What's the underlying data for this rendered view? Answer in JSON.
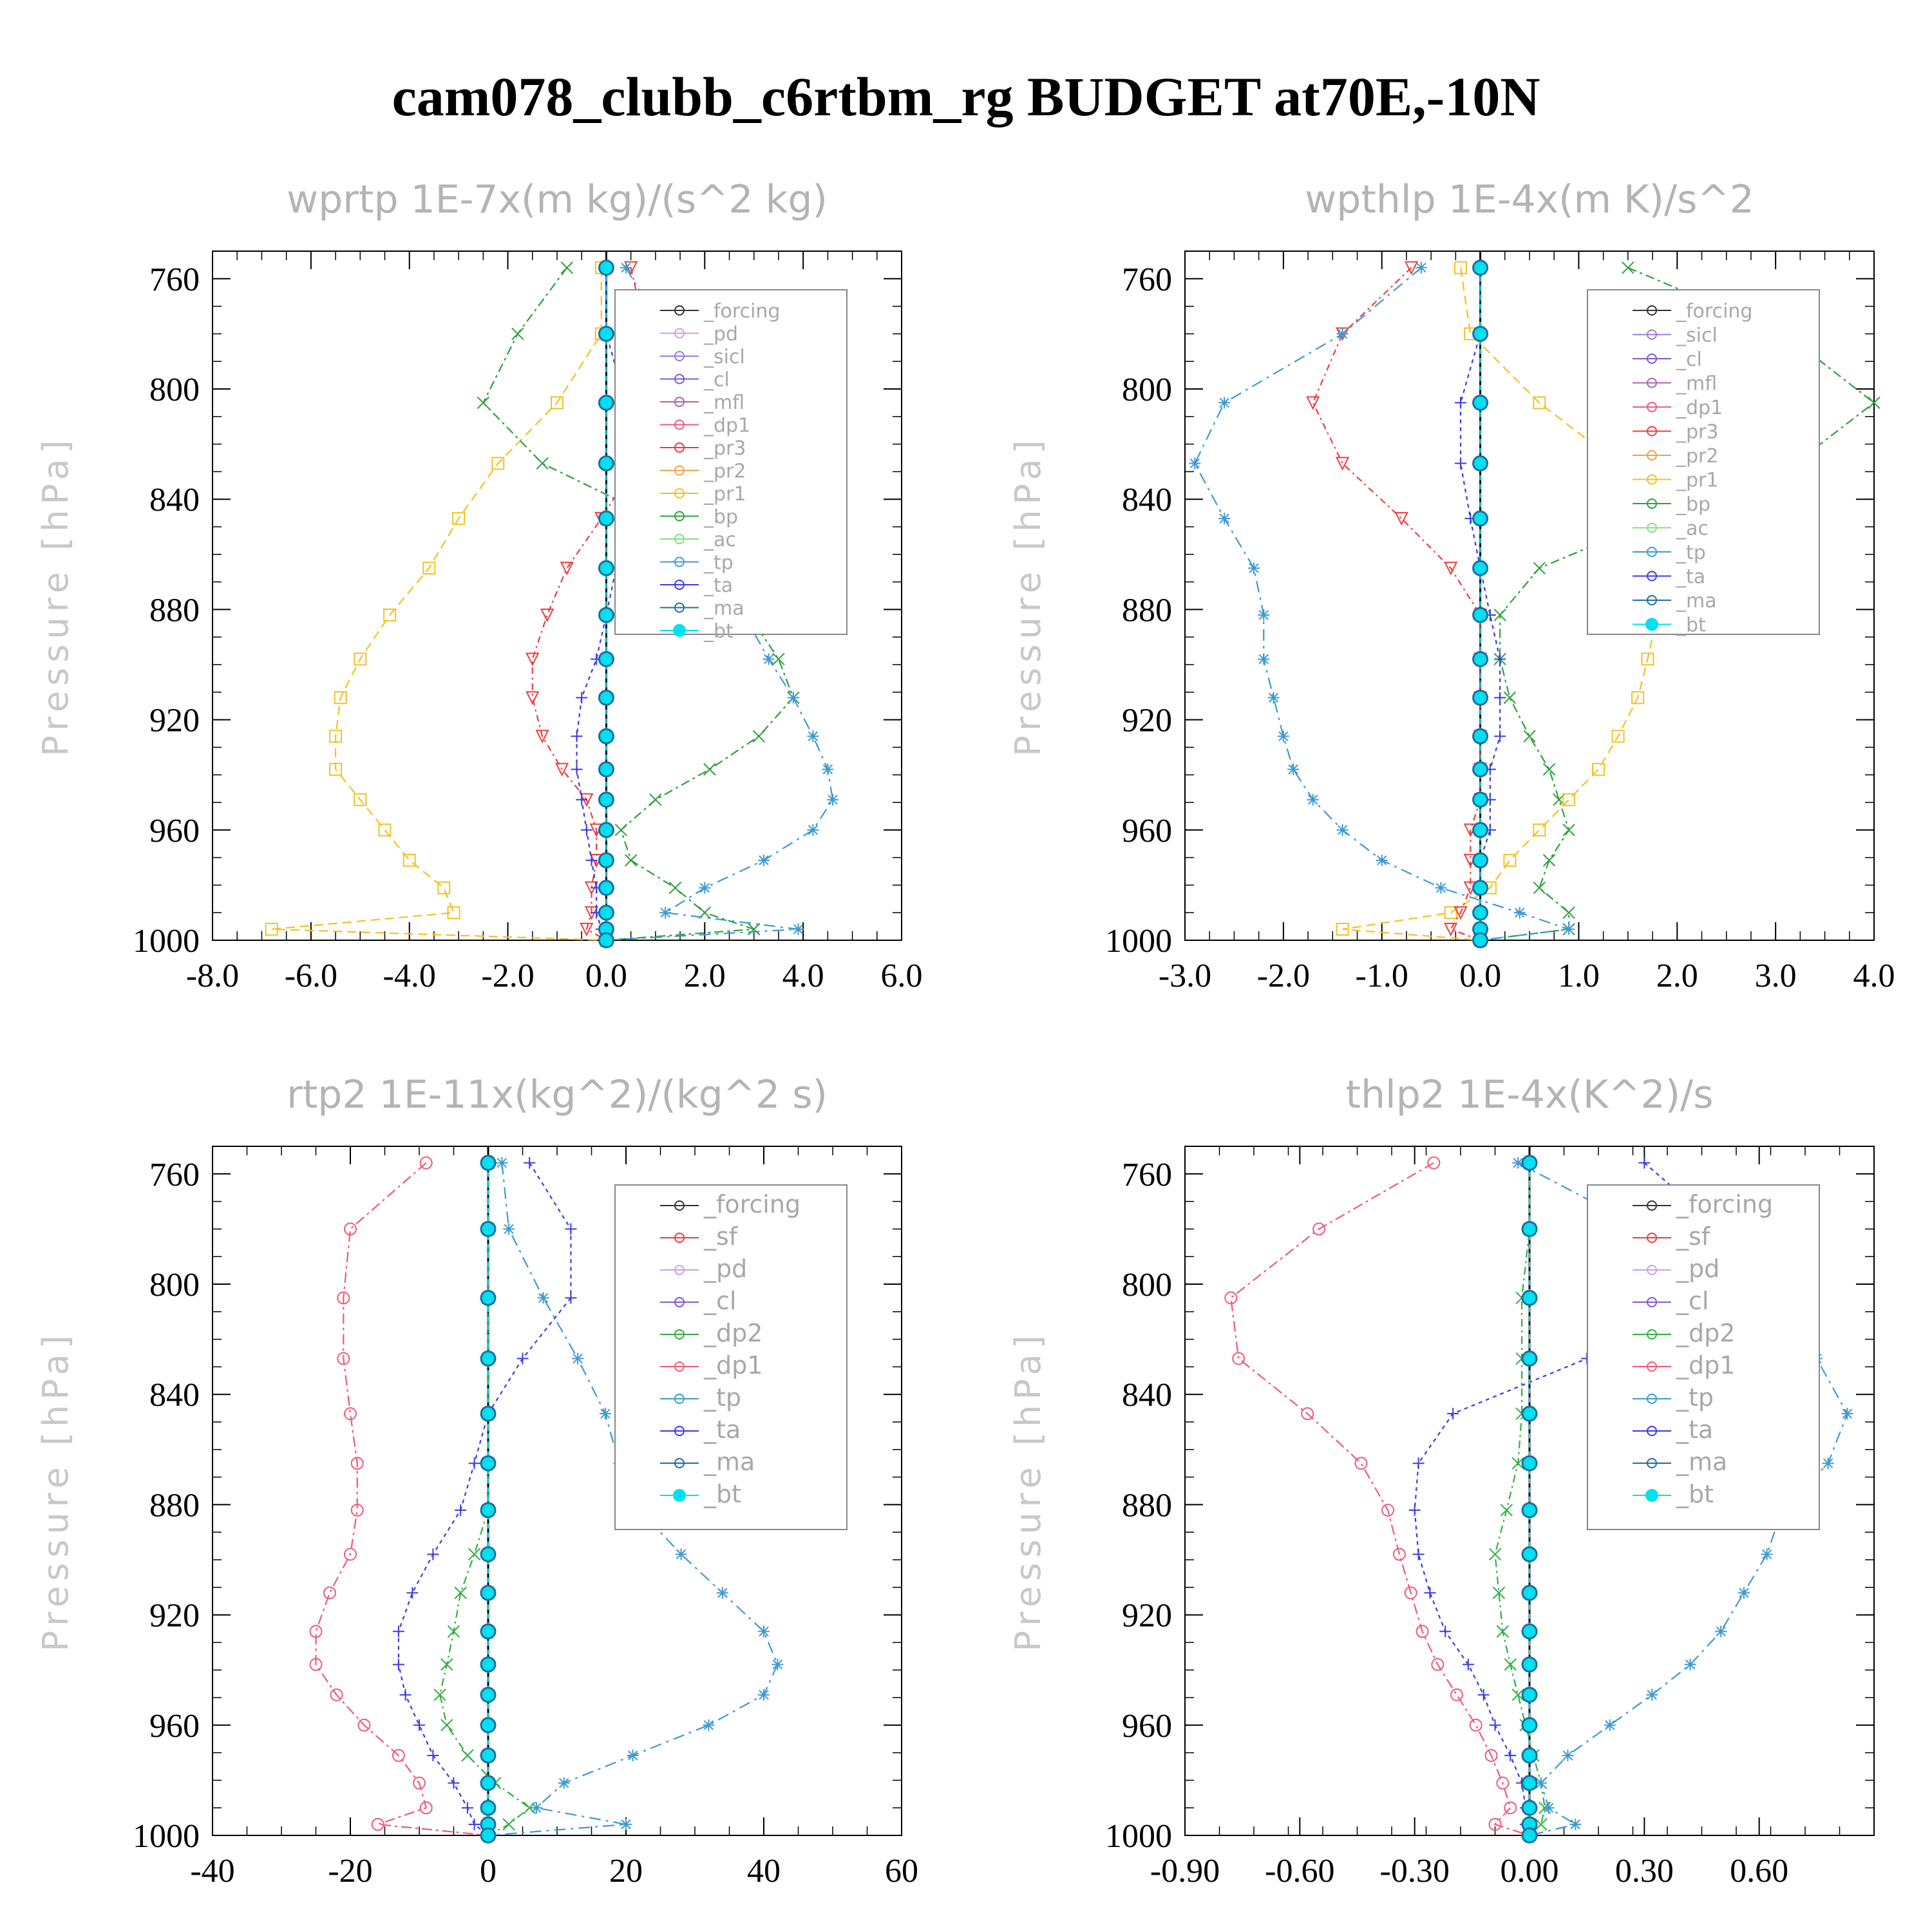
{
  "figure_title": "cam078_clubb_c6rtbm_rg  BUDGET at70E,-10N",
  "colors": {
    "forcing": "#333333",
    "pd": "#c8a0e6",
    "sicl": "#9a7ad8",
    "cl": "#7a5ad0",
    "mfl": "#b060b0",
    "dp1": "#f05a78",
    "pr3": "#f03c3c",
    "pr2": "#f0a040",
    "pr1": "#f5c020",
    "bp": "#2ea03c",
    "ac": "#80e080",
    "tp": "#3c9ad2",
    "ta": "#3a3ae8",
    "ma": "#1e6ea0",
    "bt": "#00e0f0",
    "sf": "#f03c3c",
    "dp2": "#30b040",
    "zero_line": "#000000"
  },
  "chart_data": [
    {
      "type": "line",
      "title": "wprtp  1E-7x(m kg)/(s^2 kg)",
      "ylabel": "Pressure [hPa]",
      "xlim": [
        -8.0,
        6.0
      ],
      "ylim": [
        1000,
        750
      ],
      "xticks": [
        "-8.0",
        "-6.0",
        "-4.0",
        "-2.0",
        "0.0",
        "2.0",
        "4.0",
        "6.0"
      ],
      "yticks": [
        "760",
        "800",
        "840",
        "880",
        "920",
        "960",
        "1000"
      ],
      "legend": [
        "_forcing",
        "_pd",
        "_sicl",
        "_cl",
        "_mfl",
        "_dp1",
        "_pr3",
        "_pr2",
        "_pr1",
        "_bp",
        "_ac",
        "_tp",
        "_ta",
        "_ma",
        "_bt"
      ],
      "pressure": [
        756,
        780,
        805,
        827,
        847,
        865,
        882,
        898,
        912,
        926,
        938,
        949,
        960,
        971,
        981,
        990,
        996,
        1000
      ],
      "series": [
        {
          "name": "_pr1",
          "values": [
            -0.1,
            -0.1,
            -1.0,
            -2.2,
            -3.0,
            -3.6,
            -4.4,
            -5.0,
            -5.4,
            -5.5,
            -5.5,
            -5.0,
            -4.5,
            -4.0,
            -3.3,
            -3.1,
            -6.8,
            0.0
          ]
        },
        {
          "name": "_bp",
          "values": [
            -0.8,
            -1.8,
            -2.5,
            -1.3,
            1.0,
            2.2,
            2.9,
            3.5,
            3.8,
            3.1,
            2.1,
            1.0,
            0.3,
            0.5,
            1.4,
            2.0,
            3.0,
            0.0
          ]
        },
        {
          "name": "_pr3",
          "values": [
            0.5,
            0.8,
            1.1,
            0.6,
            -0.1,
            -0.8,
            -1.2,
            -1.5,
            -1.5,
            -1.3,
            -0.9,
            -0.4,
            -0.2,
            -0.2,
            -0.3,
            -0.3,
            -0.4,
            0.0
          ]
        },
        {
          "name": "_tp",
          "values": [
            0.4,
            1.2,
            1.7,
            1.9,
            2.2,
            2.5,
            2.8,
            3.3,
            3.8,
            4.2,
            4.5,
            4.6,
            4.2,
            3.2,
            2.0,
            1.2,
            3.9,
            0.0
          ]
        },
        {
          "name": "_ta",
          "values": [
            0.0,
            0.0,
            0.4,
            0.6,
            0.4,
            0.2,
            0.0,
            -0.2,
            -0.5,
            -0.6,
            -0.6,
            -0.5,
            -0.4,
            -0.3,
            -0.2,
            -0.2,
            -0.1,
            0.0
          ]
        },
        {
          "name": "_bt",
          "values": [
            0,
            0,
            0,
            0,
            0,
            0,
            0,
            0,
            0,
            0,
            0,
            0,
            0,
            0,
            0,
            0,
            0,
            0
          ]
        }
      ]
    },
    {
      "type": "line",
      "title": "wpthlp  1E-4x(m K)/s^2",
      "ylabel": "Pressure [hPa]",
      "xlim": [
        -3.0,
        4.0
      ],
      "ylim": [
        1000,
        750
      ],
      "xticks": [
        "-3.0",
        "-2.0",
        "-1.0",
        "0.0",
        "1.0",
        "2.0",
        "3.0",
        "4.0"
      ],
      "yticks": [
        "760",
        "800",
        "840",
        "880",
        "920",
        "960",
        "1000"
      ],
      "legend": [
        "_forcing",
        "_sicl",
        "_cl",
        "_mfl",
        "_dp1",
        "_pr3",
        "_pr2",
        "_pr1",
        "_bp",
        "_ac",
        "_tp",
        "_ta",
        "_ma",
        "_bt"
      ],
      "pressure": [
        756,
        780,
        805,
        827,
        847,
        865,
        882,
        898,
        912,
        926,
        938,
        949,
        960,
        971,
        981,
        990,
        996,
        1000
      ],
      "series": [
        {
          "name": "_bp",
          "values": [
            1.5,
            3.1,
            4.0,
            3.2,
            1.8,
            0.6,
            0.2,
            0.2,
            0.3,
            0.5,
            0.7,
            0.8,
            0.9,
            0.7,
            0.6,
            0.9,
            0.9,
            0.0
          ]
        },
        {
          "name": "_pr1",
          "values": [
            -0.2,
            -0.1,
            0.6,
            1.4,
            1.8,
            1.8,
            1.8,
            1.7,
            1.6,
            1.4,
            1.2,
            0.9,
            0.6,
            0.3,
            0.1,
            -0.3,
            -1.4,
            0.0
          ]
        },
        {
          "name": "_pr3",
          "values": [
            -0.7,
            -1.4,
            -1.7,
            -1.4,
            -0.8,
            -0.3,
            0.0,
            0.0,
            0.0,
            0.0,
            0.0,
            0.0,
            -0.1,
            -0.1,
            -0.1,
            -0.2,
            -0.3,
            0.0
          ]
        },
        {
          "name": "_tp",
          "values": [
            -0.6,
            -1.4,
            -2.6,
            -2.9,
            -2.6,
            -2.3,
            -2.2,
            -2.2,
            -2.1,
            -2.0,
            -1.9,
            -1.7,
            -1.4,
            -1.0,
            -0.4,
            0.4,
            0.9,
            0.0
          ]
        },
        {
          "name": "_ta",
          "values": [
            0.0,
            0.0,
            -0.2,
            -0.2,
            -0.1,
            0.0,
            0.1,
            0.2,
            0.2,
            0.2,
            0.1,
            0.1,
            0.1,
            0.0,
            0.0,
            0.0,
            0.0,
            0.0
          ]
        },
        {
          "name": "_bt",
          "values": [
            0,
            0,
            0,
            0,
            0,
            0,
            0,
            0,
            0,
            0,
            0,
            0,
            0,
            0,
            0,
            0,
            0,
            0
          ]
        }
      ]
    },
    {
      "type": "line",
      "title": "rtp2  1E-11x(kg^2)/(kg^2 s)",
      "ylabel": "Pressure [hPa]",
      "xlim": [
        -40,
        60
      ],
      "ylim": [
        1000,
        750
      ],
      "xticks": [
        "-40",
        "-20",
        "0",
        "20",
        "40",
        "60"
      ],
      "yticks": [
        "760",
        "800",
        "840",
        "880",
        "920",
        "960",
        "1000"
      ],
      "legend": [
        "_forcing",
        "_sf",
        "_pd",
        "_cl",
        "_dp2",
        "_dp1",
        "_tp",
        "_ta",
        "_ma",
        "_bt"
      ],
      "pressure": [
        756,
        780,
        805,
        827,
        847,
        865,
        882,
        898,
        912,
        926,
        938,
        949,
        960,
        971,
        981,
        990,
        996,
        1000
      ],
      "series": [
        {
          "name": "_dp1",
          "values": [
            -9,
            -20,
            -21,
            -21,
            -20,
            -19,
            -19,
            -20,
            -23,
            -25,
            -25,
            -22,
            -18,
            -13,
            -10,
            -9,
            -16,
            0
          ]
        },
        {
          "name": "_dp2",
          "values": [
            0,
            0,
            0,
            0,
            0,
            0,
            0,
            -2,
            -4,
            -5,
            -6,
            -7,
            -6,
            -3,
            1,
            6,
            3,
            0
          ]
        },
        {
          "name": "_tp",
          "values": [
            2,
            3,
            8,
            13,
            17,
            19,
            22,
            28,
            34,
            40,
            42,
            40,
            32,
            21,
            11,
            7,
            20,
            0
          ]
        },
        {
          "name": "_ta",
          "values": [
            6,
            12,
            12,
            5,
            0,
            -2,
            -4,
            -8,
            -11,
            -13,
            -13,
            -12,
            -10,
            -8,
            -5,
            -3,
            -2,
            0
          ]
        },
        {
          "name": "_bt",
          "values": [
            0,
            0,
            0,
            0,
            0,
            0,
            0,
            0,
            0,
            0,
            0,
            0,
            0,
            0,
            0,
            0,
            0,
            0
          ]
        }
      ]
    },
    {
      "type": "line",
      "title": "thlp2  1E-4x(K^2)/s",
      "ylabel": "Pressure [hPa]",
      "xlim": [
        -0.9,
        0.9
      ],
      "ylim": [
        1000,
        750
      ],
      "xticks": [
        "-0.90",
        "-0.60",
        "-0.30",
        "0.00",
        "0.30",
        "0.60"
      ],
      "yticks": [
        "760",
        "800",
        "840",
        "880",
        "920",
        "960",
        "1000"
      ],
      "legend": [
        "_forcing",
        "_sf",
        "_pd",
        "_cl",
        "_dp2",
        "_dp1",
        "_tp",
        "_ta",
        "_ma",
        "_bt"
      ],
      "pressure": [
        756,
        780,
        805,
        827,
        847,
        865,
        882,
        898,
        912,
        926,
        938,
        949,
        960,
        971,
        981,
        990,
        996,
        1000
      ],
      "series": [
        {
          "name": "_dp1",
          "values": [
            -0.25,
            -0.55,
            -0.78,
            -0.76,
            -0.58,
            -0.44,
            -0.37,
            -0.34,
            -0.31,
            -0.28,
            -0.24,
            -0.19,
            -0.14,
            -0.1,
            -0.07,
            -0.05,
            -0.09,
            0.0
          ]
        },
        {
          "name": "_dp2",
          "values": [
            0.0,
            0.0,
            -0.02,
            -0.02,
            -0.02,
            -0.03,
            -0.06,
            -0.09,
            -0.08,
            -0.07,
            -0.05,
            -0.03,
            -0.01,
            0.01,
            0.03,
            0.04,
            0.03,
            0.0
          ]
        },
        {
          "name": "_tp",
          "values": [
            -0.03,
            0.3,
            0.53,
            0.75,
            0.83,
            0.78,
            0.66,
            0.62,
            0.56,
            0.5,
            0.42,
            0.32,
            0.21,
            0.1,
            0.03,
            0.05,
            0.12,
            0.0
          ]
        },
        {
          "name": "_ta",
          "values": [
            0.3,
            0.5,
            0.35,
            0.15,
            -0.2,
            -0.29,
            -0.3,
            -0.29,
            -0.26,
            -0.22,
            -0.16,
            -0.12,
            -0.09,
            -0.05,
            -0.02,
            -0.01,
            -0.01,
            0.0
          ]
        },
        {
          "name": "_bt",
          "values": [
            0,
            0,
            0,
            0,
            0,
            0,
            0,
            0,
            0,
            0,
            0,
            0,
            0,
            0,
            0,
            0,
            0,
            0
          ]
        }
      ]
    }
  ]
}
